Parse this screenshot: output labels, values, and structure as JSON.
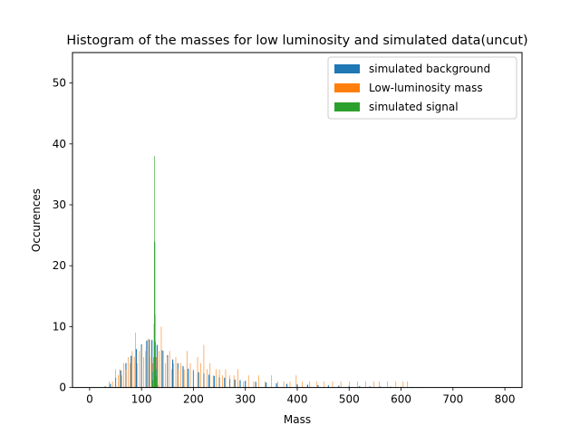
{
  "chart_data": {
    "type": "bar",
    "title": "Histogram of the masses for low luminosity and simulated data(uncut)",
    "xlabel": "Mass",
    "ylabel": "Occurences",
    "xlim": [
      -33,
      833
    ],
    "ylim": [
      0,
      55
    ],
    "xticks": [
      0,
      100,
      200,
      300,
      400,
      500,
      600,
      700,
      800
    ],
    "yticks": [
      0,
      10,
      20,
      30,
      40,
      50
    ],
    "legend_position": "top-right",
    "series": [
      {
        "name": "simulated background",
        "color": "#1f77b4",
        "bin_width": 2,
        "x": [
          30,
          40,
          50,
          60,
          70,
          80,
          90,
          100,
          110,
          115,
          120,
          125,
          130,
          140,
          150,
          160,
          170,
          180,
          190,
          200,
          210,
          220,
          230,
          240,
          250,
          260,
          270,
          280,
          290,
          300,
          320,
          340,
          360,
          380,
          400,
          420,
          440,
          460,
          480,
          500,
          520,
          540,
          560,
          580,
          600,
          620,
          640,
          660,
          680,
          700,
          720,
          740,
          760,
          780,
          795
        ],
        "values": [
          0.2,
          0.6,
          1.6,
          2.8,
          4.0,
          5.2,
          6.3,
          7.1,
          7.7,
          7.9,
          7.8,
          7.5,
          7.0,
          6.1,
          5.3,
          4.6,
          4.0,
          3.5,
          3.1,
          2.8,
          2.5,
          2.3,
          2.1,
          1.9,
          1.7,
          1.6,
          1.4,
          1.3,
          1.2,
          1.1,
          0.95,
          0.82,
          0.7,
          0.6,
          0.52,
          0.45,
          0.4,
          0.34,
          0.3,
          0.26,
          0.22,
          0.19,
          0.16,
          0.13,
          0.11,
          0.09,
          0.07,
          0.06,
          0.05,
          0.04,
          0.03,
          0.03,
          0.02,
          0.02,
          0.01
        ]
      },
      {
        "name": "Low-luminosity mass",
        "color": "#ff7f0e",
        "bin_width": 1,
        "x": [
          38,
          44,
          50,
          55,
          58,
          62,
          66,
          70,
          74,
          78,
          82,
          86,
          88,
          92,
          96,
          100,
          104,
          108,
          112,
          116,
          122,
          128,
          134,
          138,
          142,
          146,
          150,
          154,
          158,
          162,
          166,
          170,
          176,
          182,
          188,
          194,
          200,
          208,
          214,
          220,
          226,
          232,
          238,
          244,
          250,
          256,
          262,
          270,
          278,
          286,
          296,
          306,
          316,
          326,
          338,
          350,
          362,
          374,
          386,
          398,
          410,
          424,
          438,
          452,
          468,
          484,
          500,
          516,
          532,
          548,
          558,
          574,
          590,
          604,
          612
        ],
        "values": [
          1,
          1,
          3,
          2,
          3,
          2,
          4,
          3,
          5,
          4,
          6,
          5,
          9,
          4,
          6,
          7,
          5,
          6,
          8,
          5,
          4,
          5,
          6,
          10,
          6,
          4,
          5,
          6,
          3,
          4,
          5,
          3,
          4,
          3,
          6,
          4,
          3,
          5,
          4,
          7,
          3,
          4,
          2,
          3,
          3,
          2,
          3,
          2,
          2,
          3,
          1,
          2,
          1,
          2,
          1,
          2,
          1,
          1,
          1,
          2,
          1,
          1,
          1,
          1,
          1,
          1,
          1,
          1,
          1,
          1,
          1,
          1,
          1,
          1,
          1
        ]
      },
      {
        "name": "simulated signal",
        "color": "#2ca02c",
        "bin_width": 0.6,
        "x": [
          120,
          121,
          122,
          123,
          124,
          124.6,
          125,
          125.6,
          126,
          126.6,
          127,
          128,
          129,
          130,
          131
        ],
        "values": [
          0.5,
          1.2,
          2.6,
          5.0,
          10.5,
          24,
          38,
          23.8,
          12,
          7.5,
          5.0,
          3.0,
          1.8,
          0.9,
          0.4
        ]
      }
    ]
  }
}
